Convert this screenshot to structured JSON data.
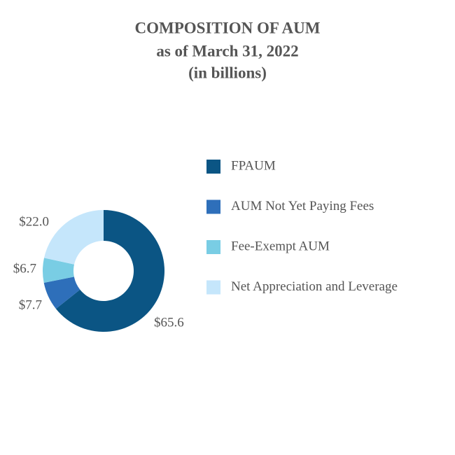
{
  "chart_data": {
    "type": "donut",
    "title": [
      "COMPOSITION OF AUM",
      "as of March 31, 2022",
      "(in billions)"
    ],
    "categories": [
      "FPAUM",
      "AUM Not Yet Paying Fees",
      "Fee-Exempt AUM",
      "Net Appreciation and Leverage"
    ],
    "values": [
      65.6,
      7.7,
      6.7,
      22.0
    ],
    "value_labels": [
      "$65.6",
      "$7.7",
      "$6.7",
      "$22.0"
    ],
    "colors": [
      "#0b5584",
      "#2e6fba",
      "#79cde4",
      "#c5e6fb"
    ],
    "legend": "right"
  }
}
